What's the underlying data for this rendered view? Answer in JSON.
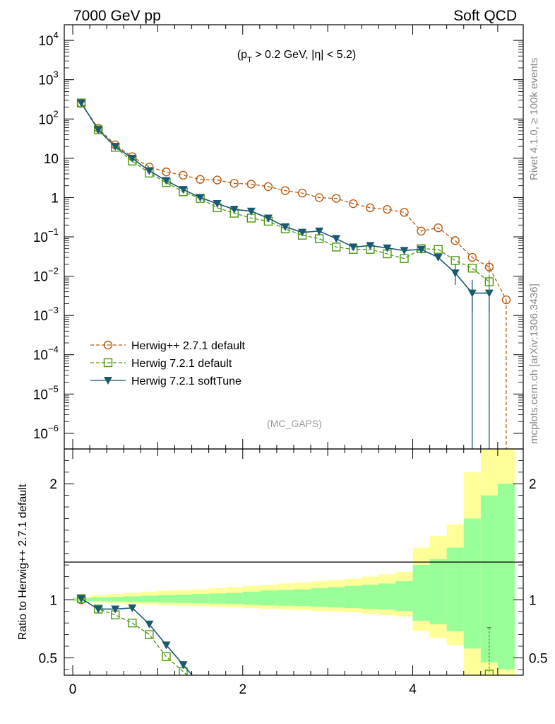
{
  "header": {
    "left": "7000 GeV pp",
    "right": "Soft QCD"
  },
  "side_text": {
    "rivet": "Rivet 4.1.0, ≥ 100k events",
    "url": "mcplots.cern.ch [arXiv:1306.3436]"
  },
  "chart_data": [
    {
      "type": "line",
      "panel": "main",
      "annotation": {
        "pre": "(p",
        "sub": "T",
        "post": " > 0.2 GeV, |η| < 5.2)"
      },
      "watermark": "(MC_GAPS)",
      "yscale": "log",
      "xlim": [
        -0.1,
        5.3
      ],
      "ylim": [
        4e-07,
        25000
      ],
      "x_ticks": [
        0,
        2,
        4
      ],
      "y_ticks": [
        {
          "value": 1e-06,
          "base": "10",
          "exp": "−6"
        },
        {
          "value": 1e-05,
          "base": "10",
          "exp": "−5"
        },
        {
          "value": 0.0001,
          "base": "10",
          "exp": "−4"
        },
        {
          "value": 0.001,
          "base": "10",
          "exp": "−3"
        },
        {
          "value": 0.01,
          "base": "10",
          "exp": "−2"
        },
        {
          "value": 0.1,
          "base": "10",
          "exp": "−1"
        },
        {
          "value": 1,
          "base": "1",
          "exp": ""
        },
        {
          "value": 10,
          "base": "10",
          "exp": ""
        },
        {
          "value": 100,
          "base": "10",
          "exp": "2"
        },
        {
          "value": 1000,
          "base": "10",
          "exp": "3"
        },
        {
          "value": 10000,
          "base": "10",
          "exp": "4"
        }
      ],
      "legend_position": "bottom-left",
      "series": [
        {
          "name": "Herwig++ 2.7.1 default",
          "color": "#b85c10",
          "marker": "circle",
          "dash": true,
          "x": [
            0.1,
            0.3,
            0.5,
            0.7,
            0.9,
            1.1,
            1.3,
            1.5,
            1.7,
            1.9,
            2.1,
            2.3,
            2.5,
            2.7,
            2.9,
            3.1,
            3.3,
            3.5,
            3.7,
            3.9,
            4.1,
            4.3,
            4.5,
            4.7,
            4.9,
            5.1
          ],
          "y": [
            250,
            58,
            22,
            11,
            6.0,
            4.5,
            3.7,
            2.9,
            2.8,
            2.3,
            2.2,
            1.9,
            1.5,
            1.3,
            1.0,
            0.95,
            0.7,
            0.55,
            0.5,
            0.42,
            0.14,
            0.17,
            0.08,
            0.03,
            0.017,
            0.0025
          ]
        },
        {
          "name": "Herwig 7.2.1 default",
          "color": "#4a9a10",
          "marker": "square",
          "dash": true,
          "x": [
            0.1,
            0.3,
            0.5,
            0.7,
            0.9,
            1.1,
            1.3,
            1.5,
            1.7,
            1.9,
            2.1,
            2.3,
            2.5,
            2.7,
            2.9,
            3.1,
            3.3,
            3.5,
            3.7,
            3.9,
            4.1,
            4.3,
            4.5,
            4.7,
            4.9
          ],
          "y": [
            255,
            53,
            19,
            8.5,
            4.2,
            2.4,
            1.4,
            0.95,
            0.55,
            0.4,
            0.3,
            0.25,
            0.16,
            0.11,
            0.09,
            0.055,
            0.048,
            0.048,
            0.037,
            0.028,
            0.05,
            0.048,
            0.025,
            0.016,
            0.0072
          ]
        },
        {
          "name": "Herwig 7.2.1 softTune",
          "color": "#1a5a70",
          "marker": "triangle-down",
          "dash": false,
          "x": [
            0.1,
            0.3,
            0.5,
            0.7,
            0.9,
            1.1,
            1.3,
            1.5,
            1.7,
            1.9,
            2.1,
            2.3,
            2.5,
            2.7,
            2.9,
            3.1,
            3.3,
            3.5,
            3.7,
            3.9,
            4.1,
            4.3,
            4.5,
            4.7,
            4.9
          ],
          "y": [
            255,
            53,
            20,
            10,
            4.8,
            2.7,
            1.6,
            1.0,
            0.7,
            0.5,
            0.45,
            0.3,
            0.18,
            0.13,
            0.14,
            0.09,
            0.055,
            0.06,
            0.052,
            0.045,
            0.048,
            0.03,
            0.012,
            0.0037,
            0.0037
          ]
        }
      ]
    },
    {
      "type": "line",
      "panel": "ratio",
      "ylabel": "Ratio to Herwig++ 2.7.1 default",
      "xlim": [
        -0.1,
        5.3
      ],
      "ylim": [
        0.35,
        2.3
      ],
      "y_ticks": [
        0.5,
        1,
        2
      ],
      "y_tick_labels": [
        "0.5",
        "1",
        "2"
      ],
      "x_ticks": [
        0,
        2,
        4
      ],
      "x_tick_labels": [
        "0",
        "2",
        "4"
      ],
      "band_edges": [
        0,
        0.2,
        0.4,
        0.6,
        0.8,
        1.0,
        1.2,
        1.4,
        1.6,
        1.8,
        2.0,
        2.2,
        2.4,
        2.6,
        2.8,
        3.0,
        3.2,
        3.4,
        3.6,
        3.8,
        4.0,
        4.2,
        4.4,
        4.6,
        4.8,
        5.0,
        5.2
      ],
      "band_yellow": [
        0.02,
        0.04,
        0.05,
        0.06,
        0.07,
        0.08,
        0.085,
        0.09,
        0.1,
        0.11,
        0.12,
        0.13,
        0.14,
        0.15,
        0.16,
        0.17,
        0.18,
        0.2,
        0.22,
        0.24,
        0.45,
        0.55,
        0.65,
        1.1,
        1.3,
        1.6
      ],
      "band_green": [
        0.015,
        0.02,
        0.025,
        0.03,
        0.035,
        0.04,
        0.045,
        0.05,
        0.055,
        0.06,
        0.07,
        0.08,
        0.085,
        0.09,
        0.1,
        0.11,
        0.12,
        0.13,
        0.14,
        0.16,
        0.3,
        0.35,
        0.45,
        0.7,
        0.9,
        1.0
      ],
      "series": [
        {
          "name": "Herwig 7.2.1 default",
          "color": "#4a9a10",
          "marker": "square",
          "dash": true,
          "x": [
            0.1,
            0.3,
            0.5,
            0.7,
            0.9,
            1.1,
            1.3
          ],
          "y": [
            1.01,
            0.92,
            0.87,
            0.8,
            0.7,
            0.51,
            0.38
          ]
        },
        {
          "name": "Herwig 7.2.1 softTune",
          "color": "#1a5a70",
          "marker": "triangle-down",
          "dash": false,
          "x": [
            0.1,
            0.3,
            0.5,
            0.7,
            0.9,
            1.1,
            1.3
          ],
          "y": [
            1.01,
            0.92,
            0.92,
            0.93,
            0.79,
            0.61,
            0.44
          ]
        },
        {
          "name": "Herwig 7.2.1 default (tail point)",
          "color": "#4a9a10",
          "marker": "square",
          "dash": false,
          "x": [
            4.9
          ],
          "y": [
            0.36
          ],
          "err": [
            [
              0.36,
              0.76
            ]
          ]
        }
      ]
    }
  ]
}
